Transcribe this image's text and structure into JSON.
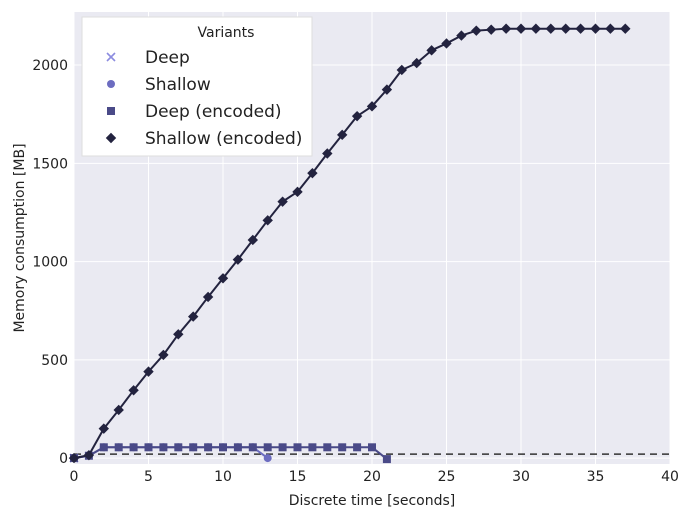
{
  "chart_data": {
    "type": "line",
    "xlabel": "Discrete time [seconds]",
    "ylabel": "Memory consumption [MB]",
    "xlim": [
      0,
      40
    ],
    "ylim": [
      -30,
      2270
    ],
    "xticks": [
      0,
      5,
      10,
      15,
      20,
      25,
      30,
      35,
      40
    ],
    "yticks": [
      0,
      500,
      1000,
      1500,
      2000
    ],
    "grid": true,
    "background_color": "#eaeaf2",
    "grid_color": "#ffffff",
    "baseline": {
      "y": 20,
      "style": "dashed",
      "color": "#333333"
    },
    "legend": {
      "title": "Variants",
      "placement": "top-left"
    },
    "series": [
      {
        "name": "Deep",
        "marker": "x",
        "color": "#8c8ce0",
        "x": [
          0
        ],
        "y": [
          0
        ]
      },
      {
        "name": "Shallow",
        "marker": "circle",
        "color": "#6c6cc0",
        "x": [
          0,
          1,
          2,
          3,
          4,
          5,
          6,
          7,
          8,
          9,
          10,
          11,
          12,
          13
        ],
        "y": [
          0,
          12,
          55,
          55,
          55,
          55,
          55,
          55,
          55,
          55,
          55,
          55,
          55,
          0
        ]
      },
      {
        "name": "Deep (encoded)",
        "marker": "square",
        "color": "#4a4a88",
        "x": [
          0,
          1,
          2,
          3,
          4,
          5,
          6,
          7,
          8,
          9,
          10,
          11,
          12,
          13,
          14,
          15,
          16,
          17,
          18,
          19,
          20,
          21
        ],
        "y": [
          0,
          12,
          55,
          55,
          55,
          55,
          55,
          55,
          55,
          55,
          55,
          55,
          55,
          55,
          55,
          55,
          55,
          55,
          55,
          55,
          55,
          -5
        ]
      },
      {
        "name": "Shallow (encoded)",
        "marker": "diamond",
        "color": "#23233f",
        "x": [
          0,
          1,
          2,
          3,
          4,
          5,
          6,
          7,
          8,
          9,
          10,
          11,
          12,
          13,
          14,
          15,
          16,
          17,
          18,
          19,
          20,
          21,
          22,
          23,
          24,
          25,
          26,
          27,
          28,
          29,
          30,
          31,
          32,
          33,
          34,
          35,
          36,
          37
        ],
        "y": [
          0,
          15,
          150,
          245,
          345,
          440,
          525,
          630,
          720,
          820,
          915,
          1010,
          1110,
          1210,
          1305,
          1355,
          1450,
          1550,
          1645,
          1740,
          1790,
          1875,
          1975,
          2010,
          2075,
          2110,
          2150,
          2175,
          2180,
          2185,
          2185,
          2185,
          2185,
          2185,
          2185,
          2185,
          2185,
          2185
        ]
      }
    ]
  }
}
